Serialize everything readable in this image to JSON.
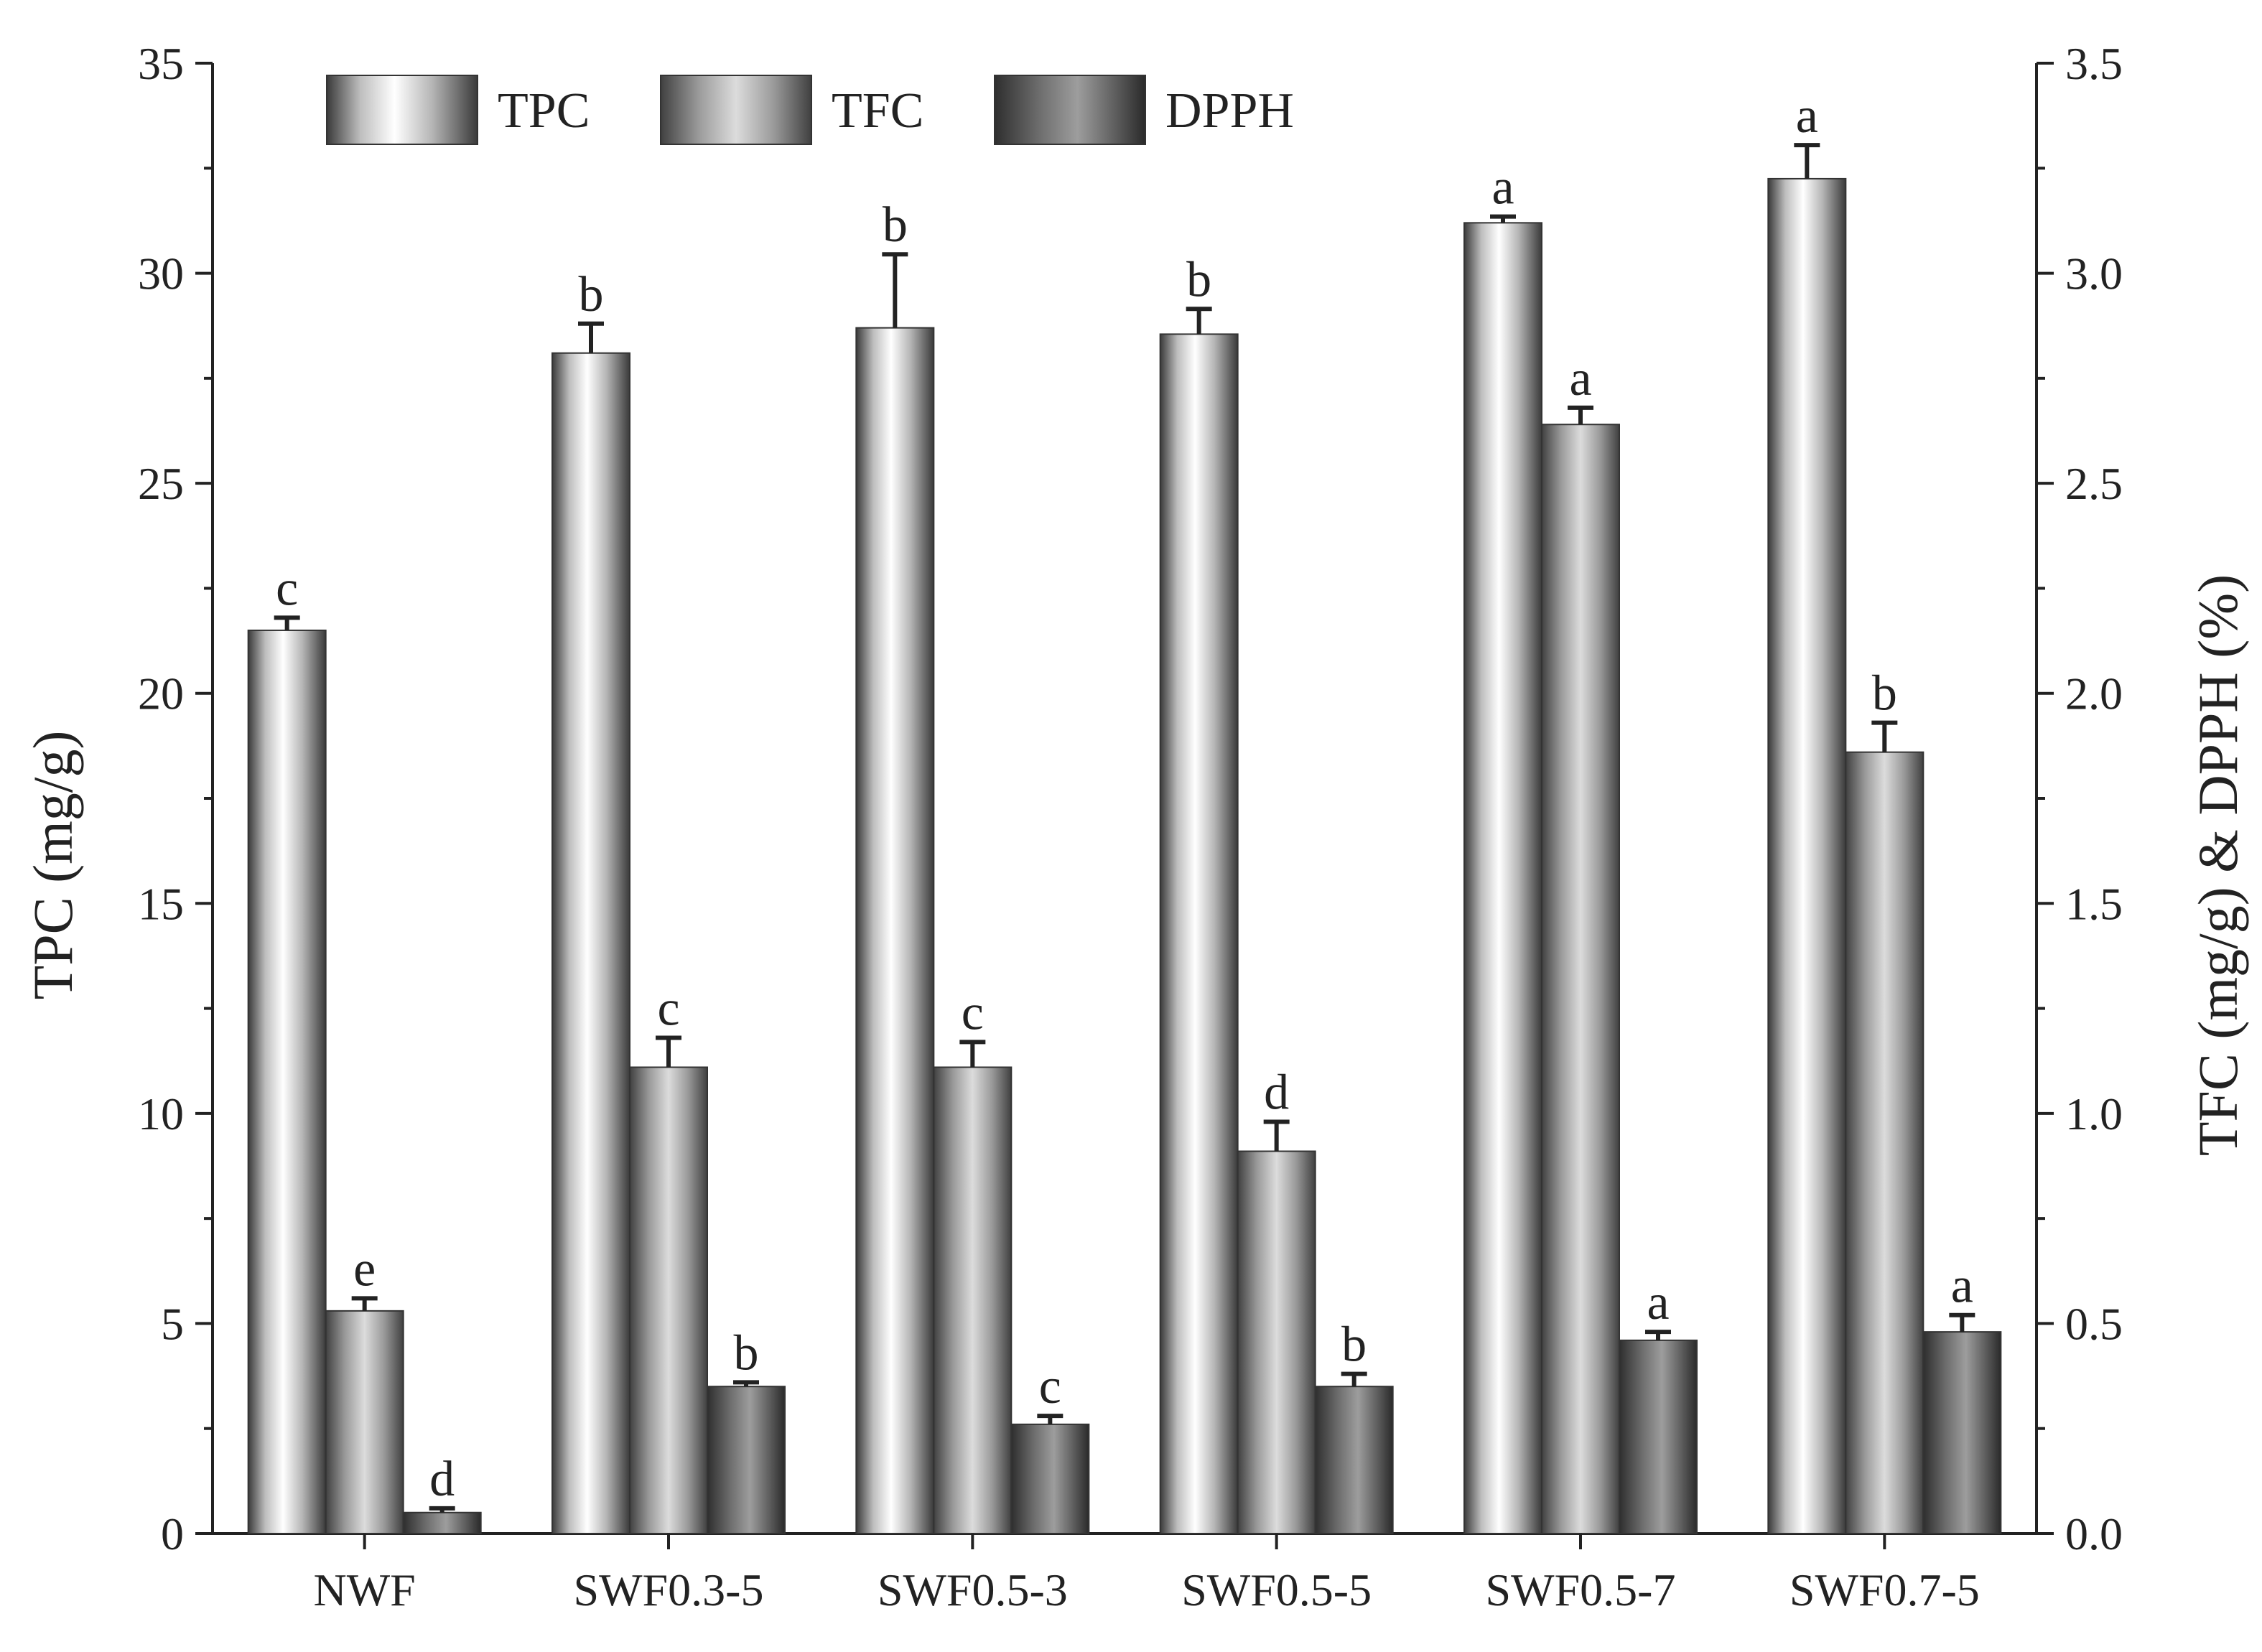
{
  "chart_data": {
    "type": "bar",
    "categories": [
      "NWF",
      "SWF0.3-5",
      "SWF0.5-3",
      "SWF0.5-5",
      "SWF0.5-7",
      "SWF0.7-5"
    ],
    "ylabel": "TPC (mg/g)",
    "y2label": "TFC (mg/g) & DPPH (%)",
    "ylim": [
      0,
      35
    ],
    "y2lim": [
      0,
      3.5
    ],
    "yticks": [
      "0",
      "5",
      "10",
      "15",
      "20",
      "25",
      "30",
      "35"
    ],
    "y2ticks": [
      "0.0",
      "0.5",
      "1.0",
      "1.5",
      "2.0",
      "2.5",
      "3.0",
      "3.5"
    ],
    "legend_position": "top-left",
    "series": [
      {
        "name": "TPC",
        "axis": "left",
        "values": [
          21.5,
          28.1,
          28.7,
          28.55,
          31.2,
          32.25
        ],
        "errors": [
          0.3,
          0.7,
          1.75,
          0.6,
          0.15,
          0.8
        ],
        "letters": [
          "c",
          "b",
          "b",
          "b",
          "a",
          "a"
        ]
      },
      {
        "name": "TFC",
        "axis": "right",
        "values": [
          0.53,
          1.11,
          1.11,
          0.91,
          2.64,
          1.86
        ],
        "errors": [
          0.03,
          0.07,
          0.06,
          0.07,
          0.04,
          0.07
        ],
        "letters": [
          "e",
          "c",
          "c",
          "d",
          "a",
          "b"
        ]
      },
      {
        "name": "DPPH",
        "axis": "right",
        "values": [
          0.05,
          0.35,
          0.26,
          0.35,
          0.46,
          0.48
        ],
        "errors": [
          0.01,
          0.01,
          0.02,
          0.03,
          0.02,
          0.04
        ],
        "letters": [
          "d",
          "b",
          "c",
          "b",
          "a",
          "a"
        ]
      }
    ]
  }
}
